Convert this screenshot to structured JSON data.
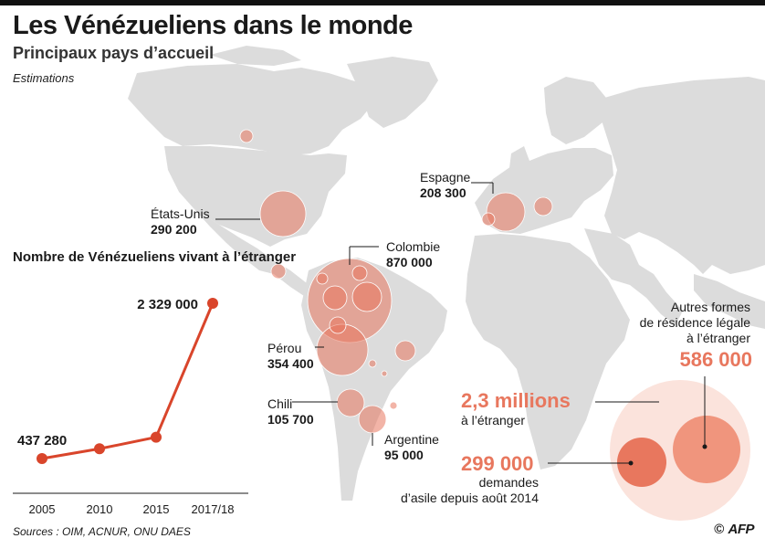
{
  "header": {
    "title": "Les Vénézueliens dans le monde",
    "subtitle": "Principaux pays d’accueil",
    "note": "Estimations"
  },
  "map": {
    "land_color": "#dcdcdc",
    "bubble_color": "#e8775e",
    "countries": [
      {
        "name": "États-Unis",
        "value": "290 200"
      },
      {
        "name": "Colombie",
        "value": "870 000"
      },
      {
        "name": "Pérou",
        "value": "354 400"
      },
      {
        "name": "Chili",
        "value": "105 700"
      },
      {
        "name": "Argentine",
        "value": "95 000"
      },
      {
        "name": "Espagne",
        "value": "208 300"
      }
    ]
  },
  "chart_data": {
    "type": "line",
    "title": "Nombre de Vénézueliens vivant à l’étranger",
    "categories": [
      "2005",
      "2010",
      "2015",
      "2017/18"
    ],
    "values": [
      437280,
      556641,
      697562,
      2329000
    ],
    "data_labels": [
      "437 280",
      "",
      "",
      "2 329 000"
    ],
    "line_color": "#d9452b"
  },
  "breakdown": {
    "total": {
      "value": "2,3 millions",
      "label": "à l’étranger"
    },
    "asylum": {
      "value": "299 000",
      "label_line1": "demandes",
      "label_line2": "d’asile depuis août 2014"
    },
    "other": {
      "label_line1": "Autres formes",
      "label_line2": "de résidence légale",
      "label_line3": "à l’étranger",
      "value": "586 000"
    }
  },
  "footer": {
    "sources": "Sources : OIM, ACNUR, ONU DAES",
    "copyright": "©",
    "logo": "AFP"
  }
}
